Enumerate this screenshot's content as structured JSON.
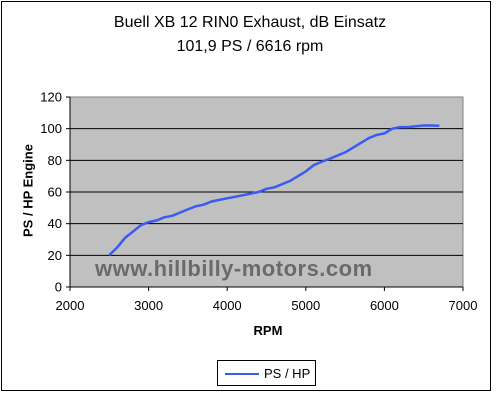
{
  "chart_data": {
    "type": "line",
    "title": "Buell XB 12 RIN0 Exhaust, dB Einsatz",
    "subtitle": "101,9 PS / 6616 rpm",
    "xlabel": "RPM",
    "ylabel": "PS / HP Engine",
    "xlim": [
      2000,
      7000
    ],
    "ylim": [
      0,
      120
    ],
    "xticks": [
      "2000",
      "3000",
      "4000",
      "5000",
      "6000",
      "7000"
    ],
    "yticks": [
      "0",
      "20",
      "40",
      "60",
      "80",
      "100",
      "120"
    ],
    "grid": true,
    "legend": "bottom",
    "watermark": "www.hillbilly-motors.com",
    "series": [
      {
        "name": "PS / HP",
        "color": "#3a5bf2",
        "x": [
          2500,
          2600,
          2700,
          2800,
          2900,
          3000,
          3100,
          3200,
          3300,
          3400,
          3500,
          3600,
          3700,
          3800,
          3900,
          4000,
          4100,
          4200,
          4300,
          4400,
          4500,
          4600,
          4700,
          4800,
          4900,
          5000,
          5100,
          5200,
          5300,
          5400,
          5500,
          5600,
          5700,
          5800,
          5900,
          6000,
          6100,
          6200,
          6300,
          6400,
          6500,
          6600,
          6700
        ],
        "y": [
          20,
          25,
          31,
          35,
          39,
          41,
          42,
          44,
          45,
          47,
          49,
          51,
          52,
          54,
          55,
          56,
          57,
          58,
          59,
          60,
          62,
          63,
          65,
          67,
          70,
          73,
          77,
          79,
          81,
          83,
          85,
          88,
          91,
          94,
          96,
          97,
          100,
          101,
          101,
          101.5,
          102,
          102,
          101.9
        ]
      }
    ]
  }
}
